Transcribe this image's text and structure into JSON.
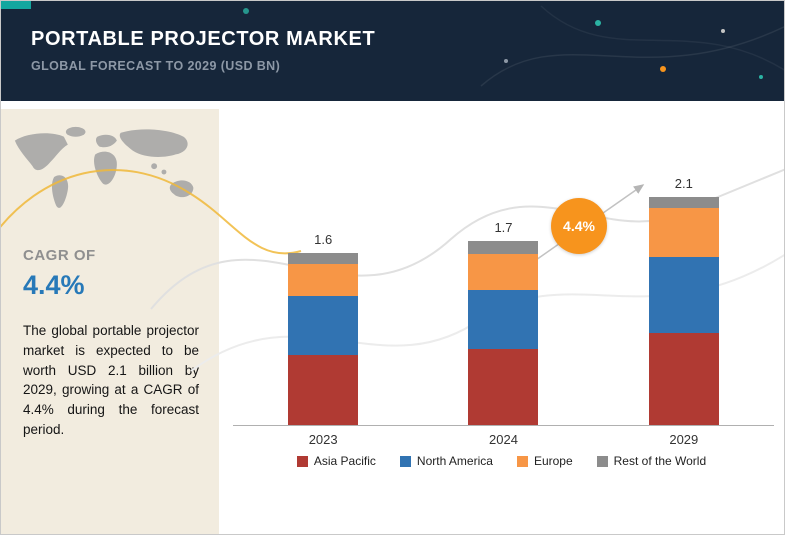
{
  "header": {
    "title": "PORTABLE PROJECTOR MARKET",
    "subtitle": "GLOBAL FORECAST TO 2029 (USD BN)"
  },
  "sidebar": {
    "cagr_label": "CAGR OF",
    "cagr_value": "4.4%",
    "description": "The global portable projector market is expected to be worth USD 2.1 billion by 2029, growing at a CAGR of 4.4% during the forecast period."
  },
  "badge": {
    "label": "4.4%"
  },
  "colors": {
    "header_bg": "#16263a",
    "accent_teal": "#13a79f",
    "sidebar_bg": "#f2ecdf",
    "cagr_value_blue": "#2779b8",
    "badge_orange": "#f7941d",
    "asia_pacific_red": "#b03a33",
    "north_america_blue": "#3173b2",
    "europe_orange": "#f79646",
    "rest_of_world_gray": "#8c8c8c"
  },
  "chart_data": {
    "type": "bar",
    "stacked": true,
    "title": "Portable Projector Market — Global Forecast to 2029 (USD BN)",
    "categories": [
      "2023",
      "2024",
      "2029"
    ],
    "totals": [
      1.6,
      1.7,
      2.1
    ],
    "series": [
      {
        "name": "Asia Pacific",
        "color": "#b03a33",
        "values": [
          0.65,
          0.7,
          0.85
        ]
      },
      {
        "name": "North America",
        "color": "#3173b2",
        "values": [
          0.55,
          0.55,
          0.7
        ]
      },
      {
        "name": "Europe",
        "color": "#f79646",
        "values": [
          0.3,
          0.33,
          0.45
        ]
      },
      {
        "name": "Rest of the World",
        "color": "#8c8c8c",
        "values": [
          0.1,
          0.12,
          0.1
        ]
      }
    ],
    "ylabel": "USD BN",
    "ylim": [
      0,
      2.3
    ],
    "grid": false,
    "legend_position": "bottom",
    "annotations": [
      {
        "text": "4.4%",
        "style": "orange-circle",
        "meaning": "CAGR 2024-2029"
      }
    ]
  }
}
